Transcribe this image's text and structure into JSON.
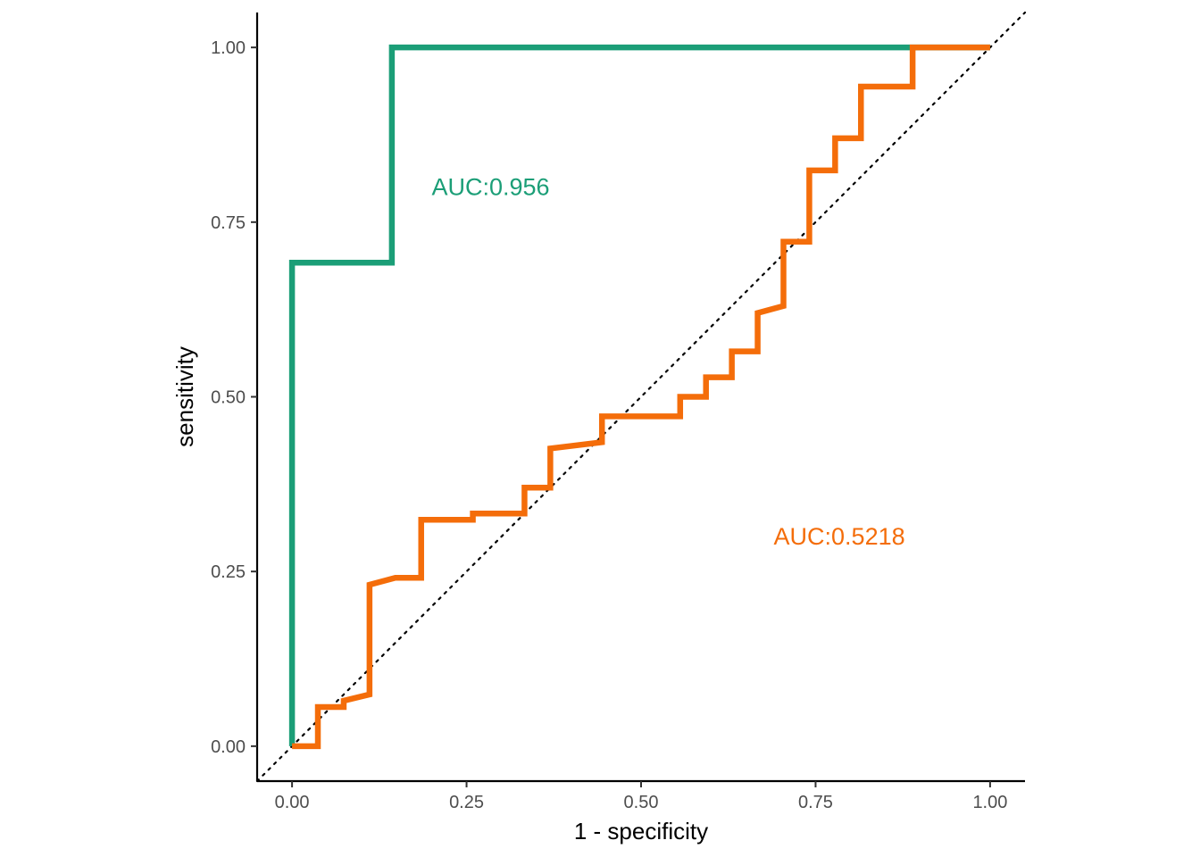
{
  "chart_data": {
    "type": "line",
    "title": "",
    "xlabel": "1 - specificity",
    "ylabel": "sensitivity",
    "xlim": [
      -0.05,
      1.05
    ],
    "ylim": [
      -0.05,
      1.05
    ],
    "xticks": [
      0,
      0.25,
      0.5,
      0.75,
      1
    ],
    "yticks": [
      0,
      0.25,
      0.5,
      0.75,
      1
    ],
    "xtick_labels": [
      "0.00",
      "0.25",
      "0.50",
      "0.75",
      "1.00"
    ],
    "ytick_labels": [
      "0.00",
      "0.25",
      "0.50",
      "0.75",
      "1.00"
    ],
    "grid": false,
    "legend": "none",
    "reference_line": {
      "x": [
        -0.05,
        1.05
      ],
      "y": [
        -0.05,
        1.05
      ],
      "style": "dotted",
      "color": "#000000"
    },
    "series": [
      {
        "color": "#1b9e77",
        "x": [
          0,
          0,
          0.143,
          0.143,
          1
        ],
        "y": [
          0,
          0.692,
          0.692,
          1,
          1
        ]
      },
      {
        "color": "#f46d0a",
        "x": [
          0,
          0.037,
          0.037,
          0.074,
          0.074,
          0.111,
          0.111,
          0.148,
          0.185,
          0.185,
          0.259,
          0.259,
          0.333,
          0.333,
          0.37,
          0.37,
          0.444,
          0.444,
          0.556,
          0.556,
          0.593,
          0.593,
          0.63,
          0.63,
          0.667,
          0.667,
          0.704,
          0.704,
          0.741,
          0.741,
          0.778,
          0.778,
          0.815,
          0.815,
          0.889,
          0.889,
          1
        ],
        "y": [
          0,
          0,
          0.056,
          0.056,
          0.065,
          0.074,
          0.231,
          0.241,
          0.241,
          0.324,
          0.324,
          0.333,
          0.333,
          0.37,
          0.37,
          0.426,
          0.435,
          0.472,
          0.472,
          0.5,
          0.5,
          0.528,
          0.528,
          0.565,
          0.565,
          0.62,
          0.63,
          0.722,
          0.722,
          0.824,
          0.824,
          0.87,
          0.87,
          0.944,
          0.944,
          1,
          1
        ]
      }
    ],
    "annotations": [
      {
        "text": "AUC:0.956",
        "x": 0.2,
        "y": 0.8,
        "color": "#1b9e77"
      },
      {
        "text": "AUC:0.5218",
        "x": 0.69,
        "y": 0.3,
        "color": "#f46d0a"
      }
    ]
  }
}
